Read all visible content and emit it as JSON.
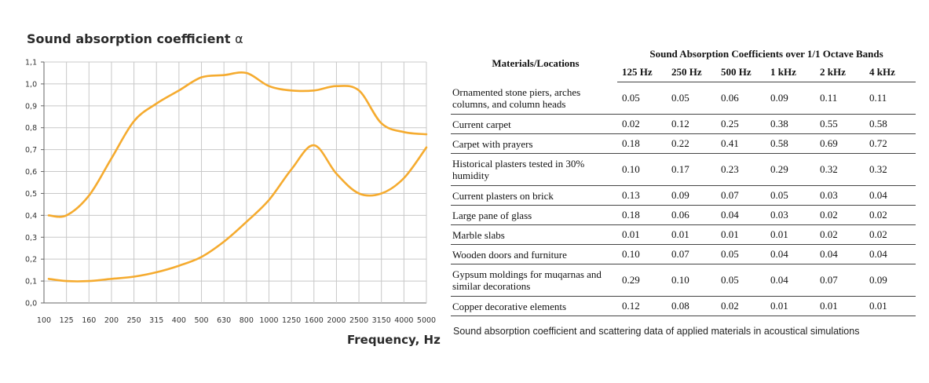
{
  "chart_data": {
    "type": "line",
    "title": "Sound absorption coefficient",
    "title_symbol": "α",
    "xlabel": "Frequency, Hz",
    "ylabel": "",
    "x": [
      "100",
      "125",
      "160",
      "200",
      "250",
      "315",
      "400",
      "500",
      "630",
      "800",
      "1000",
      "1250",
      "1600",
      "2000",
      "2500",
      "3150",
      "4000",
      "5000"
    ],
    "y_ticks": [
      "0,0",
      "0,1",
      "0,2",
      "0,3",
      "0,4",
      "0,5",
      "0,6",
      "0,7",
      "0,8",
      "0,9",
      "1,0",
      "1,1"
    ],
    "ylim": [
      0,
      1.1
    ],
    "grid": true,
    "line_color": "#f5ab2f",
    "series": [
      {
        "values": [
          0.4,
          0.4,
          0.49,
          0.66,
          0.83,
          0.91,
          0.97,
          1.03,
          1.04,
          1.05,
          0.99,
          0.97,
          0.97,
          0.99,
          0.97,
          0.82,
          0.78,
          0.77
        ]
      },
      {
        "values": [
          0.11,
          0.1,
          0.1,
          0.11,
          0.12,
          0.14,
          0.17,
          0.21,
          0.28,
          0.37,
          0.47,
          0.61,
          0.72,
          0.59,
          0.5,
          0.5,
          0.57,
          0.71
        ]
      }
    ]
  },
  "table": {
    "materials_header": "Materials/Locations",
    "group_header": "Sound Absorption Coefficients over 1/1 Octave Bands",
    "bands": [
      "125 Hz",
      "250 Hz",
      "500 Hz",
      "1 kHz",
      "2 kHz",
      "4 kHz"
    ],
    "rows": [
      {
        "material": "Ornamented stone piers, arches columns, and column heads",
        "values": [
          "0.05",
          "0.05",
          "0.06",
          "0.09",
          "0.11",
          "0.11"
        ]
      },
      {
        "material": "Current carpet",
        "values": [
          "0.02",
          "0.12",
          "0.25",
          "0.38",
          "0.55",
          "0.58"
        ]
      },
      {
        "material": "Carpet with prayers",
        "values": [
          "0.18",
          "0.22",
          "0.41",
          "0.58",
          "0.69",
          "0.72"
        ]
      },
      {
        "material": "Historical plasters tested in 30% humidity",
        "values": [
          "0.10",
          "0.17",
          "0.23",
          "0.29",
          "0.32",
          "0.32"
        ]
      },
      {
        "material": "Current plasters on brick",
        "values": [
          "0.13",
          "0.09",
          "0.07",
          "0.05",
          "0.03",
          "0.04"
        ]
      },
      {
        "material": "Large pane of glass",
        "values": [
          "0.18",
          "0.06",
          "0.04",
          "0.03",
          "0.02",
          "0.02"
        ]
      },
      {
        "material": "Marble slabs",
        "values": [
          "0.01",
          "0.01",
          "0.01",
          "0.01",
          "0.02",
          "0.02"
        ]
      },
      {
        "material": "Wooden doors and furniture",
        "values": [
          "0.10",
          "0.07",
          "0.05",
          "0.04",
          "0.04",
          "0.04"
        ]
      },
      {
        "material": "Gypsum moldings for muqarnas and similar decorations",
        "values": [
          "0.29",
          "0.10",
          "0.05",
          "0.04",
          "0.07",
          "0.09"
        ]
      },
      {
        "material": "Copper decorative elements",
        "values": [
          "0.12",
          "0.08",
          "0.02",
          "0.01",
          "0.01",
          "0.01"
        ]
      }
    ]
  },
  "caption": "Sound absorption coefficient and scattering data of applied materials in acoustical simulations"
}
